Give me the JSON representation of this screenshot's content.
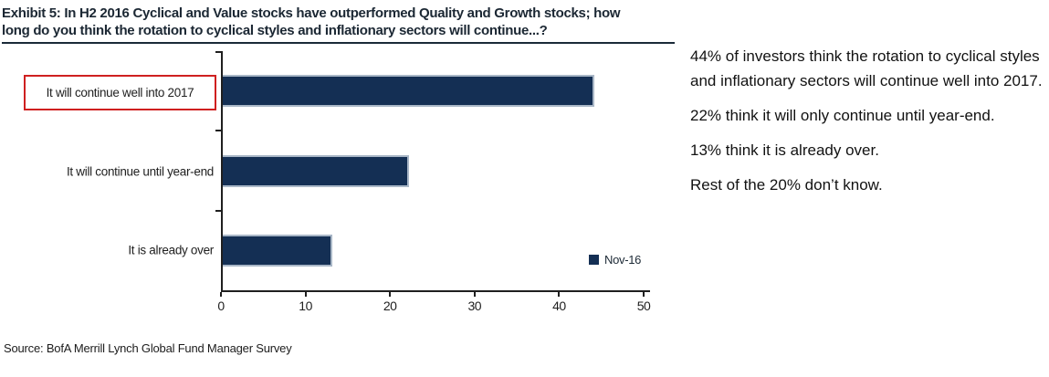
{
  "exhibit": {
    "title_line1": "Exhibit 5: In H2 2016 Cyclical and Value stocks have outperformed Quality and Growth stocks; how",
    "title_line2": "long do you think the rotation to cyclical styles and inflationary sectors will continue...?"
  },
  "chart_data": {
    "type": "bar",
    "orientation": "horizontal",
    "title": "",
    "categories": [
      "It will continue well into 2017",
      "It will continue until year-end",
      "It is already over"
    ],
    "series": [
      {
        "name": "Nov-16",
        "values": [
          44,
          22,
          13
        ]
      }
    ],
    "xlabel": "",
    "ylabel": "",
    "xlim": [
      0,
      50
    ],
    "x_ticks": [
      0,
      10,
      20,
      30,
      40,
      50
    ],
    "grid": "off",
    "legend_position": "bottom-right",
    "highlighted_category": "It will continue well into 2017",
    "bar_color": "#142f54",
    "bar_border_color": "#a9b7c7",
    "highlight_box_color": "#cf2020"
  },
  "commentary": {
    "paragraphs": [
      "44% of investors think the rotation to cyclical styles and inflationary sectors will continue well into 2017.",
      "22% think it will only continue until year-end.",
      "13% think it is already over.",
      "Rest of the 20% don’t know."
    ]
  },
  "source": "Source: BofA Merrill Lynch Global Fund Manager Survey",
  "colors": {
    "accent_navy": "#142f54",
    "highlight_red": "#cf2020",
    "title_text": "#1b2733",
    "axis": "#1f1f1f"
  }
}
